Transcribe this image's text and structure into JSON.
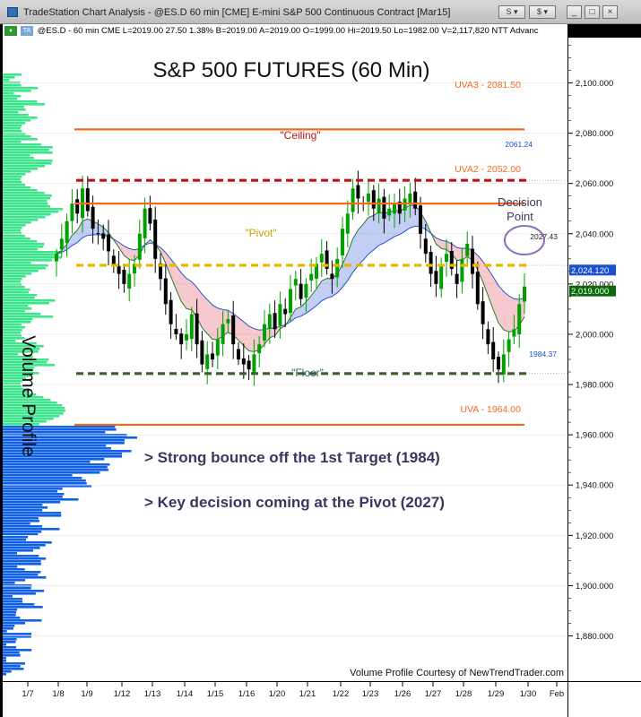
{
  "window": {
    "title": "TradeStation Chart Analysis - @ES.D 60 min [CME] E-mini S&P 500 Continuous Contract [Mar15]",
    "controls": [
      "S",
      "$",
      "_",
      "□",
      "×"
    ]
  },
  "infobar": {
    "tag1": "♦",
    "tag2": "TA",
    "text": "@ES.D - 60 min  CME  L=2019.00  27.50  1.38%  B=2019.00  A=2019.00  O=1999.00  Hi=2019.50  Lo=1982.00  V=2,117,820  NTT Advanc"
  },
  "colors": {
    "uva_line": "#f26b1d",
    "ceiling": "#c01414",
    "pivot": "#e8b800",
    "floor": "#3f5f2a",
    "volume_upper": "#3de68c",
    "volume_lower": "#1060e8",
    "candle_up": "#00a000",
    "candle_down": "#000000",
    "ma_fast": "#2b7a2b",
    "ma_slow": "#2a4fd0",
    "annotation_text": "#3d3560"
  },
  "chart_data": {
    "type": "candlestick",
    "title": "S&P 500 FUTURES (60 Min)",
    "ylim": [
      1862,
      2118
    ],
    "yticks": [
      1880,
      1900,
      1920,
      1940,
      1960,
      1980,
      2000,
      2020,
      2040,
      2060,
      2080,
      2100
    ],
    "ytick_labels": [
      "1,880.000",
      "1,900.000",
      "1,920.000",
      "1,940.000",
      "1,960.000",
      "1,980.000",
      "2,000.000",
      "2,020.000",
      "2,040.000",
      "2,060.000",
      "2,080.000",
      "2,100.000"
    ],
    "xticks": [
      "1/7",
      "1/8",
      "1/9",
      "1/12",
      "1/13",
      "1/14",
      "1/15",
      "1/16",
      "1/20",
      "1/21",
      "1/22",
      "1/23",
      "1/26",
      "1/27",
      "1/28",
      "1/29",
      "1/30",
      "Feb"
    ],
    "levels": [
      {
        "label": "UVA3 - 2081.50",
        "value": 2081.5
      },
      {
        "label": "UVA2 - 2052.00",
        "value": 2052.0
      },
      {
        "label": "UVA - 1964.00",
        "value": 1964.0
      }
    ],
    "dashed_levels": [
      {
        "label": "\"Ceiling\"",
        "value": 2061.24
      },
      {
        "label": "\"Pivot\"",
        "value": 2027.43
      },
      {
        "label": "\"Floor\"",
        "value": 1984.37
      }
    ],
    "right_tags": [
      {
        "label": "2061.24",
        "value": 2061.24
      },
      {
        "label": "2027.43",
        "value": 2027.43
      },
      {
        "label": "1984.37",
        "value": 1984.37
      }
    ],
    "price_flags": [
      {
        "label": "2,024.120",
        "value": 2024.12
      },
      {
        "label": "2,019.000",
        "value": 2019.0
      }
    ],
    "decision_label": [
      "Decision",
      "Point"
    ],
    "annotations": [
      "> Strong bounce off the 1st Target (1984)",
      "> Key decision coming at the Pivot (2027)"
    ],
    "vertical_label": "Volume Profile",
    "credit": "Volume Profile Courtesy of NewTrendTrader.com",
    "close_path": [
      2032,
      2038,
      2045,
      2052,
      2048,
      2058,
      2049,
      2042,
      2040,
      2038,
      2033,
      2027,
      2024,
      2020,
      2024,
      2028,
      2040,
      2050,
      2044,
      2030,
      2022,
      2012,
      2004,
      2000,
      1996,
      2000,
      2008,
      1996,
      1988,
      1992,
      1990,
      1998,
      2004,
      2006,
      1996,
      1990,
      1988,
      1986,
      1992,
      1996,
      2004,
      2008,
      2002,
      2012,
      2008,
      2018,
      2022,
      2014,
      2020,
      2024,
      2028,
      2032,
      2026,
      2022,
      2030,
      2042,
      2048,
      2058,
      2054,
      2052,
      2056,
      2050,
      2054,
      2046,
      2050,
      2052,
      2048,
      2054,
      2056,
      2050,
      2040,
      2032,
      2024,
      2020,
      2028,
      2032,
      2026,
      2020,
      2030,
      2036,
      2024,
      2012,
      2004,
      1996,
      1990,
      1986,
      1992,
      1998,
      2002,
      2012,
      2019
    ]
  }
}
